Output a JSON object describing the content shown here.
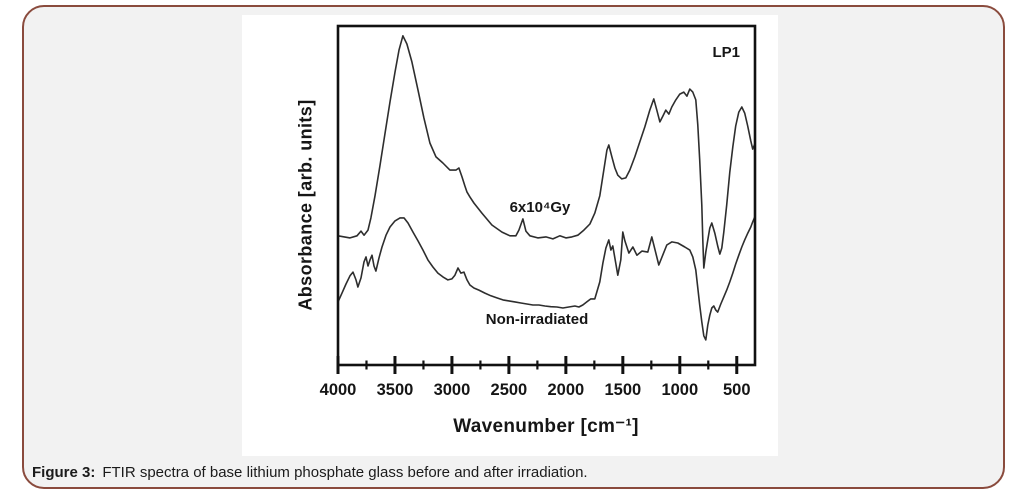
{
  "figure": {
    "caption_label": "Figure 3:",
    "caption_text": "FTIR spectra of base lithium phosphate glass before and after irradiation."
  },
  "colors": {
    "card_border": "#8a4b3d",
    "card_bg": "#f2f2f2",
    "panel_bg": "#ffffff",
    "axis": "#111111",
    "curve": "#2e2e2e",
    "text": "#151515"
  },
  "chart_data": {
    "type": "line",
    "title": "",
    "xlabel": "Wavenumber [cm⁻¹]",
    "ylabel": "Absorbance [arb. units]",
    "annotation": "LP1",
    "x_range": [
      4000,
      340
    ],
    "x_axis_reversed": true,
    "ylim": [
      0,
      1
    ],
    "y_units": "arbitrary (no ticks shown)",
    "grid": false,
    "legend_position": "inline-curve-labels",
    "x_ticks_major": [
      4000,
      3500,
      3000,
      2500,
      2000,
      1500,
      1000,
      500
    ],
    "x_ticks_minor": [
      3750,
      3250,
      2750,
      2250,
      1750,
      1250,
      750
    ],
    "series": [
      {
        "name": "6x10⁴Gy",
        "description": "irradiated sample spectrum (upper curve)",
        "points": [
          [
            4000,
            0.381
          ],
          [
            3895,
            0.375
          ],
          [
            3833,
            0.381
          ],
          [
            3798,
            0.395
          ],
          [
            3772,
            0.383
          ],
          [
            3737,
            0.398
          ],
          [
            3711,
            0.434
          ],
          [
            3675,
            0.499
          ],
          [
            3632,
            0.587
          ],
          [
            3588,
            0.681
          ],
          [
            3544,
            0.776
          ],
          [
            3500,
            0.864
          ],
          [
            3465,
            0.929
          ],
          [
            3430,
            0.971
          ],
          [
            3395,
            0.947
          ],
          [
            3351,
            0.894
          ],
          [
            3298,
            0.811
          ],
          [
            3246,
            0.729
          ],
          [
            3193,
            0.655
          ],
          [
            3140,
            0.614
          ],
          [
            3079,
            0.596
          ],
          [
            3018,
            0.575
          ],
          [
            2965,
            0.575
          ],
          [
            2939,
            0.581
          ],
          [
            2912,
            0.555
          ],
          [
            2886,
            0.528
          ],
          [
            2868,
            0.51
          ],
          [
            2842,
            0.496
          ],
          [
            2807,
            0.478
          ],
          [
            2737,
            0.448
          ],
          [
            2649,
            0.413
          ],
          [
            2561,
            0.392
          ],
          [
            2491,
            0.381
          ],
          [
            2439,
            0.381
          ],
          [
            2412,
            0.398
          ],
          [
            2377,
            0.431
          ],
          [
            2351,
            0.395
          ],
          [
            2316,
            0.381
          ],
          [
            2246,
            0.375
          ],
          [
            2175,
            0.378
          ],
          [
            2114,
            0.372
          ],
          [
            2053,
            0.381
          ],
          [
            2000,
            0.375
          ],
          [
            1947,
            0.378
          ],
          [
            1895,
            0.383
          ],
          [
            1842,
            0.398
          ],
          [
            1789,
            0.416
          ],
          [
            1746,
            0.448
          ],
          [
            1702,
            0.499
          ],
          [
            1667,
            0.575
          ],
          [
            1640,
            0.634
          ],
          [
            1623,
            0.649
          ],
          [
            1596,
            0.614
          ],
          [
            1570,
            0.581
          ],
          [
            1544,
            0.56
          ],
          [
            1509,
            0.549
          ],
          [
            1474,
            0.552
          ],
          [
            1439,
            0.575
          ],
          [
            1395,
            0.614
          ],
          [
            1351,
            0.658
          ],
          [
            1307,
            0.702
          ],
          [
            1263,
            0.752
          ],
          [
            1228,
            0.785
          ],
          [
            1202,
            0.752
          ],
          [
            1175,
            0.717
          ],
          [
            1149,
            0.734
          ],
          [
            1123,
            0.752
          ],
          [
            1096,
            0.74
          ],
          [
            1070,
            0.761
          ],
          [
            1035,
            0.782
          ],
          [
            1000,
            0.799
          ],
          [
            965,
            0.805
          ],
          [
            938,
            0.793
          ],
          [
            912,
            0.814
          ],
          [
            886,
            0.805
          ],
          [
            860,
            0.782
          ],
          [
            842,
            0.708
          ],
          [
            825,
            0.605
          ],
          [
            807,
            0.472
          ],
          [
            798,
            0.369
          ],
          [
            789,
            0.286
          ],
          [
            772,
            0.333
          ],
          [
            754,
            0.369
          ],
          [
            737,
            0.404
          ],
          [
            719,
            0.419
          ],
          [
            693,
            0.389
          ],
          [
            667,
            0.351
          ],
          [
            649,
            0.327
          ],
          [
            631,
            0.345
          ],
          [
            614,
            0.392
          ],
          [
            588,
            0.472
          ],
          [
            561,
            0.569
          ],
          [
            535,
            0.643
          ],
          [
            509,
            0.705
          ],
          [
            482,
            0.746
          ],
          [
            456,
            0.761
          ],
          [
            430,
            0.743
          ],
          [
            404,
            0.705
          ],
          [
            377,
            0.661
          ],
          [
            360,
            0.637
          ],
          [
            342,
            0.652
          ]
        ]
      },
      {
        "name": "Non-irradiated",
        "description": "base glass spectrum (lower curve)",
        "points": [
          [
            4000,
            0.186
          ],
          [
            3965,
            0.212
          ],
          [
            3930,
            0.239
          ],
          [
            3895,
            0.263
          ],
          [
            3868,
            0.274
          ],
          [
            3842,
            0.251
          ],
          [
            3825,
            0.23
          ],
          [
            3798,
            0.257
          ],
          [
            3772,
            0.304
          ],
          [
            3754,
            0.319
          ],
          [
            3737,
            0.292
          ],
          [
            3719,
            0.31
          ],
          [
            3702,
            0.324
          ],
          [
            3684,
            0.292
          ],
          [
            3667,
            0.277
          ],
          [
            3640,
            0.316
          ],
          [
            3614,
            0.348
          ],
          [
            3579,
            0.383
          ],
          [
            3544,
            0.407
          ],
          [
            3500,
            0.425
          ],
          [
            3456,
            0.434
          ],
          [
            3421,
            0.434
          ],
          [
            3386,
            0.419
          ],
          [
            3342,
            0.392
          ],
          [
            3298,
            0.366
          ],
          [
            3254,
            0.339
          ],
          [
            3211,
            0.31
          ],
          [
            3167,
            0.289
          ],
          [
            3123,
            0.271
          ],
          [
            3079,
            0.26
          ],
          [
            3035,
            0.251
          ],
          [
            3000,
            0.254
          ],
          [
            2974,
            0.265
          ],
          [
            2947,
            0.286
          ],
          [
            2921,
            0.271
          ],
          [
            2895,
            0.274
          ],
          [
            2868,
            0.251
          ],
          [
            2842,
            0.236
          ],
          [
            2807,
            0.227
          ],
          [
            2763,
            0.221
          ],
          [
            2711,
            0.212
          ],
          [
            2658,
            0.204
          ],
          [
            2605,
            0.198
          ],
          [
            2553,
            0.192
          ],
          [
            2500,
            0.189
          ],
          [
            2447,
            0.186
          ],
          [
            2395,
            0.183
          ],
          [
            2342,
            0.18
          ],
          [
            2289,
            0.177
          ],
          [
            2237,
            0.177
          ],
          [
            2184,
            0.174
          ],
          [
            2132,
            0.172
          ],
          [
            2079,
            0.171
          ],
          [
            2026,
            0.168
          ],
          [
            1974,
            0.171
          ],
          [
            1921,
            0.174
          ],
          [
            1886,
            0.171
          ],
          [
            1851,
            0.177
          ],
          [
            1816,
            0.186
          ],
          [
            1781,
            0.195
          ],
          [
            1746,
            0.195
          ],
          [
            1702,
            0.245
          ],
          [
            1675,
            0.301
          ],
          [
            1649,
            0.345
          ],
          [
            1623,
            0.369
          ],
          [
            1605,
            0.339
          ],
          [
            1588,
            0.351
          ],
          [
            1561,
            0.298
          ],
          [
            1544,
            0.265
          ],
          [
            1518,
            0.31
          ],
          [
            1500,
            0.392
          ],
          [
            1482,
            0.366
          ],
          [
            1447,
            0.33
          ],
          [
            1412,
            0.348
          ],
          [
            1377,
            0.324
          ],
          [
            1333,
            0.336
          ],
          [
            1281,
            0.333
          ],
          [
            1246,
            0.378
          ],
          [
            1184,
            0.295
          ],
          [
            1114,
            0.354
          ],
          [
            1070,
            0.363
          ],
          [
            1018,
            0.36
          ],
          [
            956,
            0.348
          ],
          [
            912,
            0.339
          ],
          [
            886,
            0.319
          ],
          [
            860,
            0.28
          ],
          [
            842,
            0.227
          ],
          [
            825,
            0.177
          ],
          [
            807,
            0.127
          ],
          [
            789,
            0.086
          ],
          [
            772,
            0.074
          ],
          [
            754,
            0.118
          ],
          [
            737,
            0.147
          ],
          [
            719,
            0.168
          ],
          [
            702,
            0.174
          ],
          [
            684,
            0.162
          ],
          [
            667,
            0.156
          ],
          [
            640,
            0.18
          ],
          [
            614,
            0.201
          ],
          [
            588,
            0.221
          ],
          [
            561,
            0.245
          ],
          [
            535,
            0.271
          ],
          [
            509,
            0.298
          ],
          [
            482,
            0.324
          ],
          [
            456,
            0.348
          ],
          [
            430,
            0.369
          ],
          [
            403,
            0.389
          ],
          [
            377,
            0.407
          ],
          [
            360,
            0.422
          ],
          [
            342,
            0.437
          ]
        ]
      }
    ]
  }
}
